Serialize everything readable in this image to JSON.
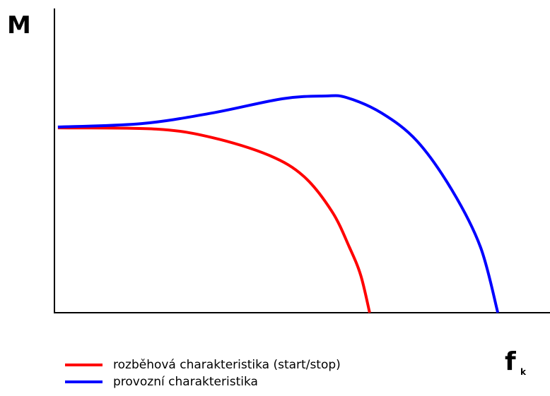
{
  "chart_data": {
    "type": "line",
    "y_label": "M",
    "x_label": "f",
    "x_label_subscript": "k",
    "xlim": [
      0,
      100
    ],
    "ylim": [
      0,
      100
    ],
    "series": [
      {
        "name": "rozběhová charakteristika (start/stop)",
        "color": "#ff0000",
        "x": [
          0.7,
          20.6,
          31.9,
          43.3,
          50.4,
          56.1,
          59.6,
          61.9,
          63.7
        ],
        "values": [
          60.9,
          60.5,
          57.7,
          51.9,
          44.9,
          33.3,
          21.6,
          12.3,
          0
        ]
      },
      {
        "name": "provozní charakteristika",
        "color": "#0000ff",
        "x": [
          0.7,
          17.6,
          31.9,
          46.1,
          54.7,
          59,
          66.1,
          73.3,
          80.4,
          86.1,
          89.6
        ],
        "values": [
          61.2,
          62.3,
          65.8,
          70.5,
          71.4,
          70.9,
          65.8,
          56.5,
          40.2,
          21.6,
          0
        ]
      }
    ],
    "legend": "bottom-left"
  }
}
